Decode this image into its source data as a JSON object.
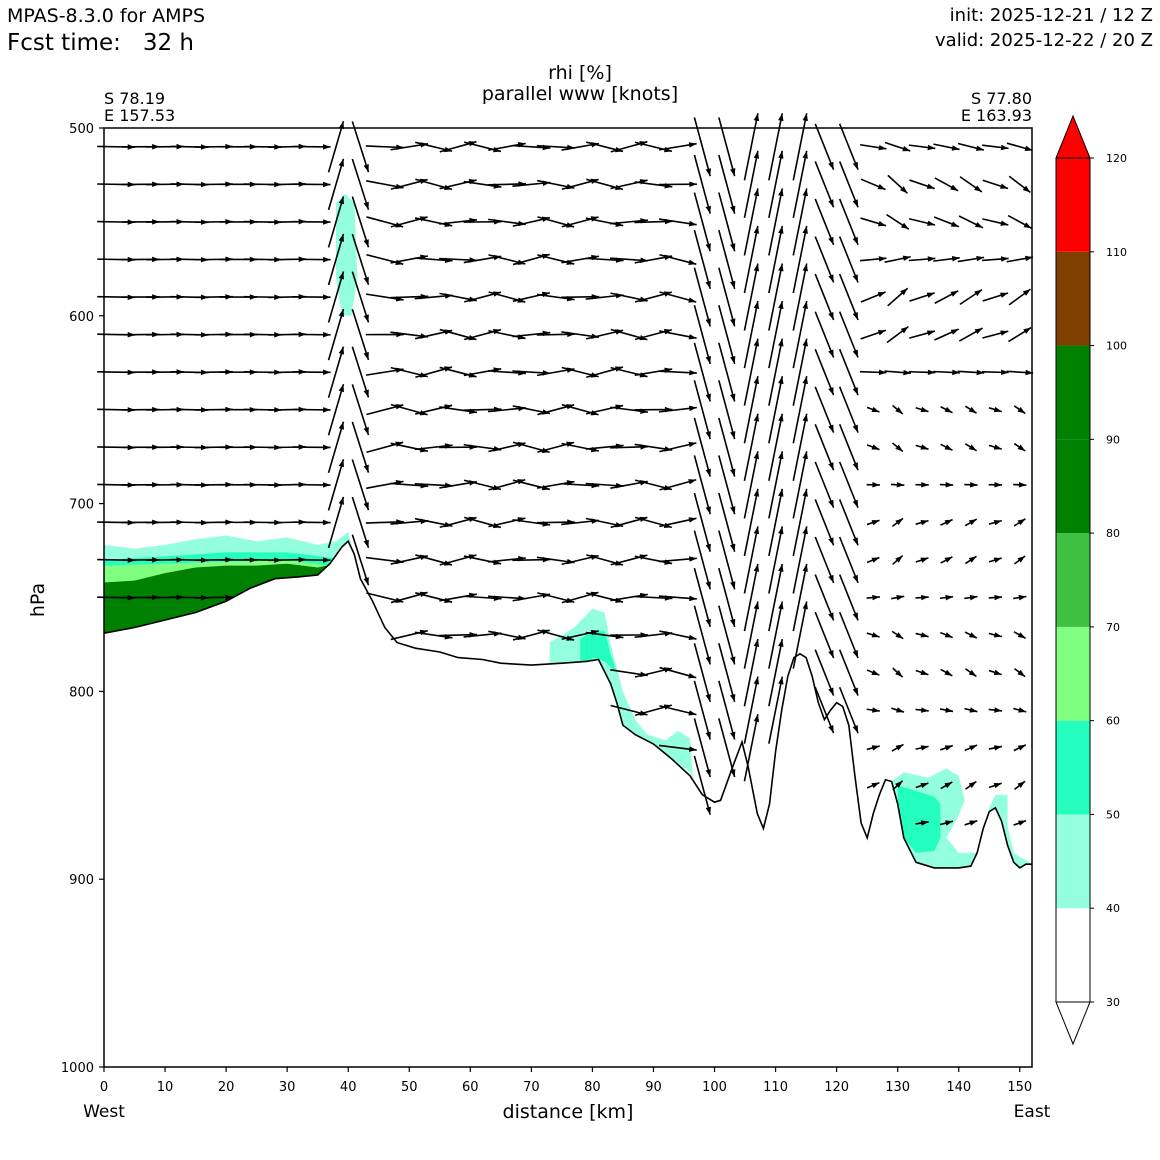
{
  "header": {
    "model": "MPAS-8.3.0 for AMPS",
    "fcst_label": "Fcst time:",
    "fcst_value": "32 h",
    "init": "init: 2025-12-21 / 12 Z",
    "valid": "valid: 2025-12-22 / 20 Z"
  },
  "chart_data": {
    "type": "cross-section",
    "title_line1": "rhi [%]",
    "title_line2": "parallel www [knots]",
    "xlabel": "distance [km]",
    "ylabel": "hPa",
    "x_range": [
      0,
      152
    ],
    "y_range": [
      500,
      1000
    ],
    "y_inverted": true,
    "x_ticks": [
      0,
      10,
      20,
      30,
      40,
      50,
      60,
      70,
      80,
      90,
      100,
      110,
      120,
      130,
      140,
      150
    ],
    "y_ticks": [
      500,
      600,
      700,
      800,
      900,
      1000
    ],
    "left_label": "West",
    "right_label": "East",
    "left_coords": [
      "S 78.19",
      "E 157.53"
    ],
    "right_coords": [
      "S 77.80",
      "E 163.93"
    ],
    "colorbar": {
      "ticks": [
        30,
        40,
        50,
        60,
        70,
        80,
        90,
        100,
        110,
        120
      ],
      "colors": [
        "#ffffff",
        "#94ffdf",
        "#24ffc0",
        "#80ff80",
        "#40c040",
        "#008000",
        "#008000",
        "#7f3f00",
        "#ff0000"
      ],
      "extend": "both"
    },
    "terrain": [
      [
        0,
        769
      ],
      [
        5,
        766
      ],
      [
        10,
        762
      ],
      [
        15,
        758
      ],
      [
        20,
        752
      ],
      [
        24,
        745
      ],
      [
        28,
        740
      ],
      [
        32,
        739
      ],
      [
        35,
        738
      ],
      [
        37,
        732
      ],
      [
        39,
        723
      ],
      [
        40,
        720
      ],
      [
        41,
        727
      ],
      [
        42,
        740
      ],
      [
        44,
        752
      ],
      [
        46,
        766
      ],
      [
        48,
        774
      ],
      [
        51,
        777
      ],
      [
        55,
        779
      ],
      [
        58,
        782
      ],
      [
        62,
        783
      ],
      [
        65,
        785
      ],
      [
        70,
        786
      ],
      [
        75,
        785
      ],
      [
        79,
        784
      ],
      [
        81,
        783
      ],
      [
        83,
        796
      ],
      [
        84,
        806
      ],
      [
        85,
        818
      ],
      [
        87,
        823
      ],
      [
        90,
        828
      ],
      [
        93,
        836
      ],
      [
        96,
        845
      ],
      [
        98,
        855
      ],
      [
        100,
        859
      ],
      [
        101,
        858
      ],
      [
        103,
        840
      ],
      [
        104.5,
        827
      ],
      [
        105.5,
        840
      ],
      [
        107,
        865
      ],
      [
        108,
        873
      ],
      [
        109,
        860
      ],
      [
        110,
        832
      ],
      [
        111,
        810
      ],
      [
        112,
        792
      ],
      [
        113,
        782
      ],
      [
        114,
        780
      ],
      [
        115,
        782
      ],
      [
        116,
        792
      ],
      [
        117,
        806
      ],
      [
        118,
        815
      ],
      [
        119,
        810
      ],
      [
        120,
        806
      ],
      [
        121,
        808
      ],
      [
        122,
        818
      ],
      [
        123,
        845
      ],
      [
        124,
        870
      ],
      [
        125,
        878
      ],
      [
        126,
        865
      ],
      [
        127,
        855
      ],
      [
        128,
        847
      ],
      [
        129,
        848
      ],
      [
        130,
        860
      ],
      [
        131,
        878
      ],
      [
        133,
        891
      ],
      [
        136,
        894
      ],
      [
        140,
        894
      ],
      [
        142,
        893
      ],
      [
        143,
        886
      ],
      [
        144,
        873
      ],
      [
        145,
        864
      ],
      [
        146,
        862
      ],
      [
        147,
        869
      ],
      [
        148,
        882
      ],
      [
        149,
        891
      ],
      [
        150,
        894
      ],
      [
        151,
        892
      ],
      [
        152,
        892
      ]
    ],
    "rhi_regions": [
      {
        "level": "40-50",
        "points": [
          [
            0,
            722
          ],
          [
            5,
            724
          ],
          [
            10,
            722
          ],
          [
            15,
            719
          ],
          [
            20,
            717
          ],
          [
            25,
            720
          ],
          [
            30,
            718
          ],
          [
            35,
            722
          ],
          [
            38,
            720
          ],
          [
            40,
            715
          ],
          [
            41,
            728
          ],
          [
            42,
            740
          ],
          [
            43,
            750
          ],
          [
            43.5,
            754
          ]
        ]
      },
      {
        "level": "40-50",
        "points": [
          [
            73,
            774
          ],
          [
            77,
            766
          ],
          [
            80,
            756
          ],
          [
            82,
            758
          ],
          [
            83,
            775
          ],
          [
            85,
            800
          ],
          [
            87,
            815
          ],
          [
            89,
            823
          ],
          [
            92,
            826
          ],
          [
            94,
            821
          ],
          [
            96,
            825
          ],
          [
            96.5,
            848
          ],
          [
            96,
            843
          ],
          [
            93,
            836
          ]
        ]
      },
      {
        "level": "40-50",
        "points": [
          [
            129,
            848
          ],
          [
            131,
            843
          ],
          [
            135,
            846
          ],
          [
            138,
            841
          ],
          [
            140,
            845
          ],
          [
            141,
            858
          ],
          [
            140,
            866
          ],
          [
            139,
            872
          ],
          [
            138,
            878
          ],
          [
            140,
            886
          ],
          [
            143,
            886
          ],
          [
            144,
            873
          ],
          [
            145,
            862
          ],
          [
            146,
            855
          ],
          [
            148,
            855
          ],
          [
            148,
            872
          ],
          [
            149,
            886
          ],
          [
            151,
            890
          ],
          [
            152,
            892
          ]
        ]
      },
      {
        "level": "40-50",
        "points": [
          [
            38,
            540
          ],
          [
            39.5,
            535
          ],
          [
            41,
            540
          ],
          [
            41.5,
            580
          ],
          [
            40.5,
            600
          ],
          [
            39,
            600
          ],
          [
            38,
            580
          ]
        ]
      },
      {
        "level": "50-60",
        "points": [
          [
            0,
            730
          ],
          [
            10,
            728
          ],
          [
            20,
            726
          ],
          [
            30,
            726
          ],
          [
            38,
            729
          ],
          [
            40,
            724
          ],
          [
            41,
            735
          ],
          [
            42,
            740
          ]
        ]
      },
      {
        "level": "50-60",
        "points": [
          [
            78,
            772
          ],
          [
            80,
            768
          ],
          [
            82,
            768
          ],
          [
            83,
            780
          ],
          [
            84,
            790
          ],
          [
            82,
            784
          ],
          [
            80,
            782
          ]
        ]
      },
      {
        "level": "50-60",
        "points": [
          [
            130,
            850
          ],
          [
            133,
            853
          ],
          [
            136,
            856
          ],
          [
            137,
            860
          ],
          [
            137,
            878
          ],
          [
            136,
            885
          ],
          [
            133,
            886
          ],
          [
            131,
            878
          ]
        ]
      },
      {
        "level": "60-70",
        "points": [
          [
            0,
            733
          ],
          [
            10,
            732
          ],
          [
            20,
            731
          ],
          [
            30,
            730
          ],
          [
            37,
            733
          ],
          [
            39,
            728
          ],
          [
            40,
            722
          ],
          [
            41,
            730
          ]
        ]
      },
      {
        "level": "80-100",
        "points": [
          [
            0,
            742
          ],
          [
            5,
            741
          ],
          [
            10,
            737
          ],
          [
            15,
            734
          ],
          [
            20,
            733
          ],
          [
            25,
            733
          ],
          [
            30,
            732
          ],
          [
            35,
            734
          ],
          [
            38,
            732
          ],
          [
            39,
            728
          ],
          [
            40,
            723
          ],
          [
            41,
            727
          ]
        ]
      }
    ]
  }
}
